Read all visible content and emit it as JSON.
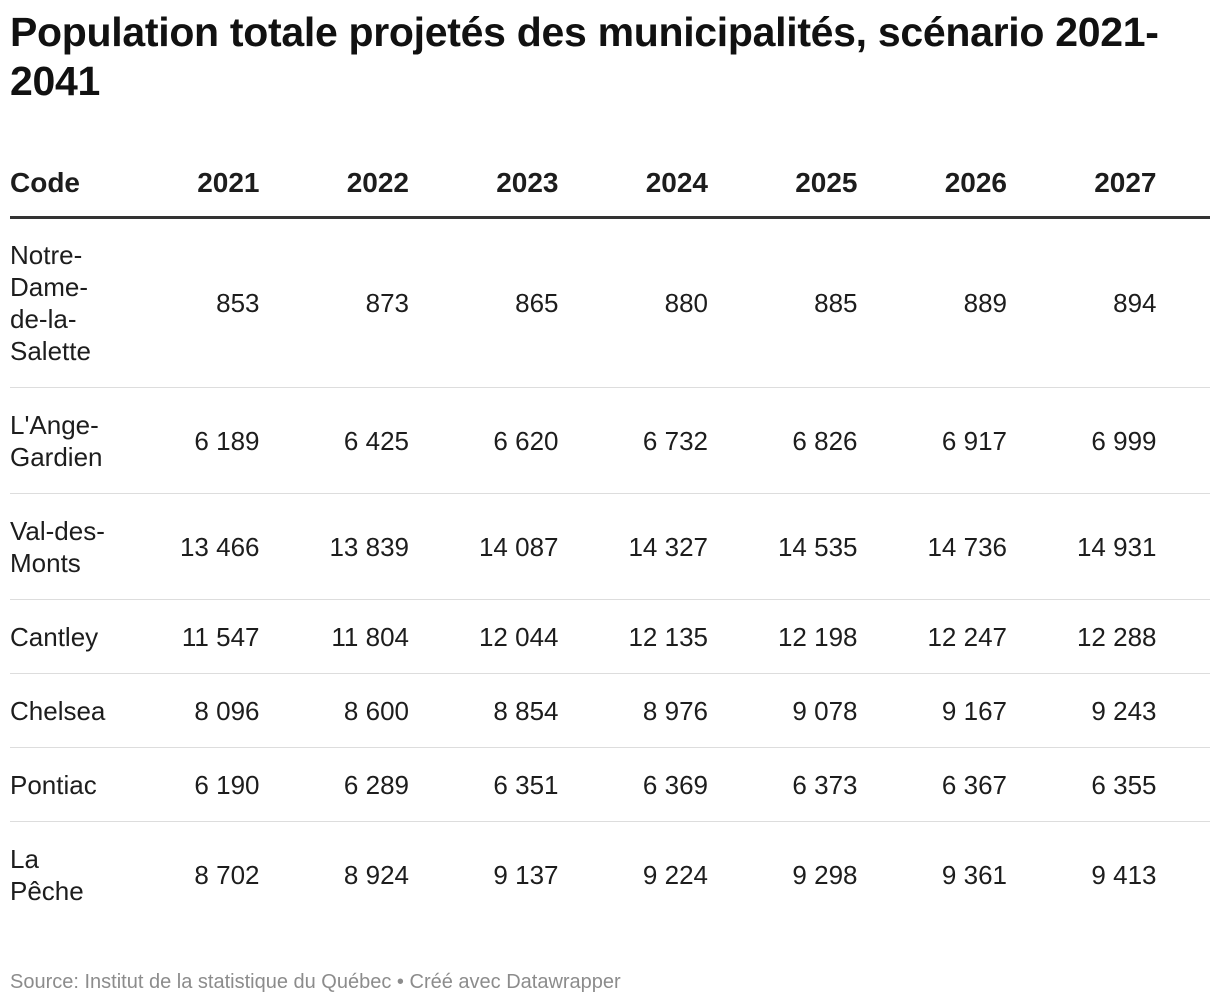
{
  "title": "Population totale projetés des municipalités, scénario 2021-2041",
  "footer": {
    "source_label": "Source:",
    "source_name": "Institut de la statistique du Québec",
    "separator": "•",
    "credit": "Créé avec Datawrapper"
  },
  "chart_data": {
    "type": "table",
    "columns": [
      "Code",
      "2021",
      "2022",
      "2023",
      "2024",
      "2025",
      "2026",
      "2027"
    ],
    "rows": [
      {
        "name": "Notre-Dame-de-la-Salette",
        "display": [
          "853",
          "873",
          "865",
          "880",
          "885",
          "889",
          "894"
        ],
        "values": [
          853,
          873,
          865,
          880,
          885,
          889,
          894
        ]
      },
      {
        "name": "L'Ange-Gardien",
        "display": [
          "6 189",
          "6 425",
          "6 620",
          "6 732",
          "6 826",
          "6 917",
          "6 999"
        ],
        "values": [
          6189,
          6425,
          6620,
          6732,
          6826,
          6917,
          6999
        ]
      },
      {
        "name": "Val-des-Monts",
        "display": [
          "13 466",
          "13 839",
          "14 087",
          "14 327",
          "14 535",
          "14 736",
          "14 931"
        ],
        "values": [
          13466,
          13839,
          14087,
          14327,
          14535,
          14736,
          14931
        ]
      },
      {
        "name": "Cantley",
        "display": [
          "11 547",
          "11 804",
          "12 044",
          "12 135",
          "12 198",
          "12 247",
          "12 288"
        ],
        "values": [
          11547,
          11804,
          12044,
          12135,
          12198,
          12247,
          12288
        ]
      },
      {
        "name": "Chelsea",
        "display": [
          "8 096",
          "8 600",
          "8 854",
          "8 976",
          "9 078",
          "9 167",
          "9 243"
        ],
        "values": [
          8096,
          8600,
          8854,
          8976,
          9078,
          9167,
          9243
        ]
      },
      {
        "name": "Pontiac",
        "display": [
          "6 190",
          "6 289",
          "6 351",
          "6 369",
          "6 373",
          "6 367",
          "6 355"
        ],
        "values": [
          6190,
          6289,
          6351,
          6369,
          6373,
          6367,
          6355
        ]
      },
      {
        "name": "La Pêche",
        "display": [
          "8 702",
          "8 924",
          "9 137",
          "9 224",
          "9 298",
          "9 361",
          "9 413"
        ],
        "values": [
          8702,
          8924,
          9137,
          9224,
          9298,
          9361,
          9413
        ]
      }
    ]
  }
}
